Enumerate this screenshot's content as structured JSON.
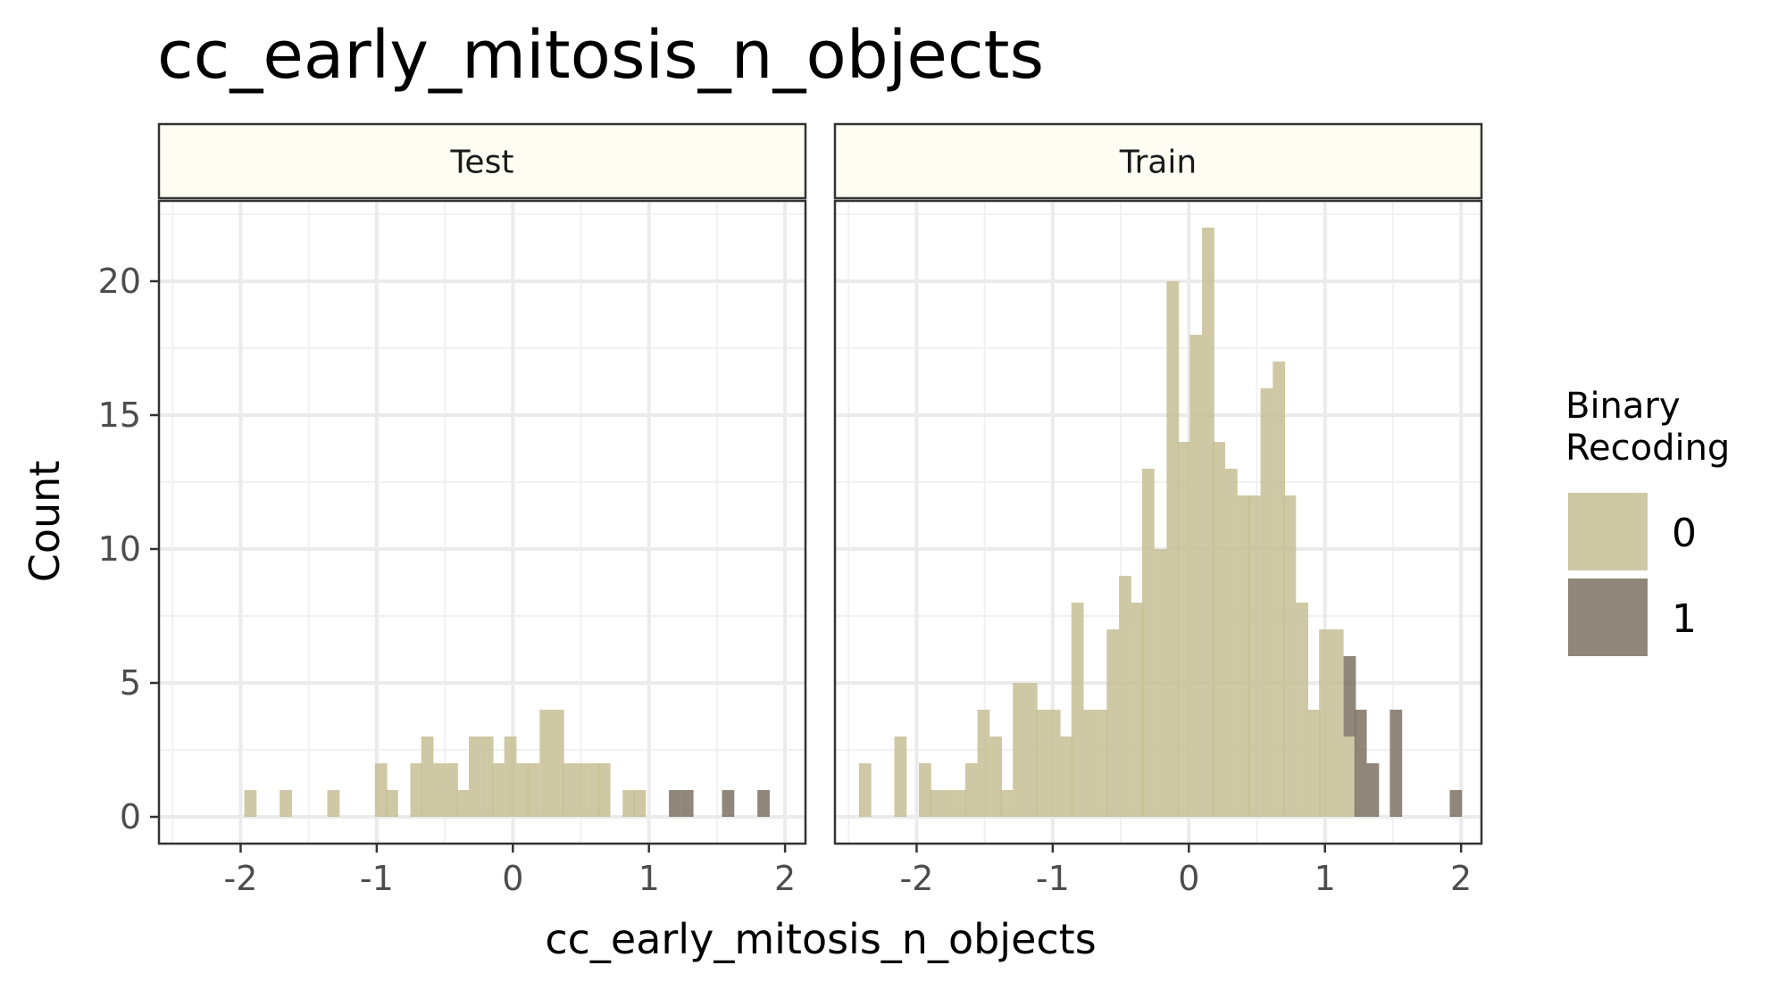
{
  "chart_data": {
    "type": "bar",
    "title": "cc_early_mitosis_n_objects",
    "xlabel": "cc_early_mitosis_n_objects",
    "ylabel": "Count",
    "xlim": [
      -2.6,
      2.15
    ],
    "ylim": [
      -1,
      23
    ],
    "x_ticks": [
      -2,
      -1,
      0,
      1,
      2
    ],
    "x_tick_labels": [
      "-2",
      "-1",
      "0",
      "1",
      "2"
    ],
    "y_ticks": [
      0,
      5,
      10,
      15,
      20
    ],
    "y_tick_labels": [
      "0",
      "5",
      "10",
      "15",
      "20"
    ],
    "grid": true,
    "bin_width": 0.0865,
    "legend": {
      "title_lines": [
        "Binary",
        "Recoding"
      ],
      "placement": "right",
      "items": [
        {
          "label": "0",
          "color": "#c5bf94"
        },
        {
          "label": "1",
          "color": "#7d7263"
        }
      ]
    },
    "facets": [
      {
        "label": "Test",
        "bins": [
          {
            "x": -1.93,
            "count": 1,
            "group": "0"
          },
          {
            "x": -1.67,
            "count": 1,
            "group": "0"
          },
          {
            "x": -1.32,
            "count": 1,
            "group": "0"
          },
          {
            "x": -0.97,
            "count": 2,
            "group": "0"
          },
          {
            "x": -0.89,
            "count": 1,
            "group": "0"
          },
          {
            "x": -0.71,
            "count": 2,
            "group": "0"
          },
          {
            "x": -0.63,
            "count": 3,
            "group": "0"
          },
          {
            "x": -0.54,
            "count": 2,
            "group": "0"
          },
          {
            "x": -0.45,
            "count": 2,
            "group": "0"
          },
          {
            "x": -0.37,
            "count": 1,
            "group": "0"
          },
          {
            "x": -0.28,
            "count": 3,
            "group": "0"
          },
          {
            "x": -0.19,
            "count": 3,
            "group": "0"
          },
          {
            "x": -0.11,
            "count": 2,
            "group": "0"
          },
          {
            "x": -0.02,
            "count": 3,
            "group": "0"
          },
          {
            "x": 0.07,
            "count": 2,
            "group": "0"
          },
          {
            "x": 0.15,
            "count": 2,
            "group": "0"
          },
          {
            "x": 0.24,
            "count": 4,
            "group": "0"
          },
          {
            "x": 0.33,
            "count": 4,
            "group": "0"
          },
          {
            "x": 0.41,
            "count": 2,
            "group": "0"
          },
          {
            "x": 0.5,
            "count": 2,
            "group": "0"
          },
          {
            "x": 0.59,
            "count": 2,
            "group": "0"
          },
          {
            "x": 0.67,
            "count": 2,
            "group": "0"
          },
          {
            "x": 0.85,
            "count": 1,
            "group": "0"
          },
          {
            "x": 0.93,
            "count": 1,
            "group": "0"
          },
          {
            "x": 1.19,
            "count": 1,
            "group": "1"
          },
          {
            "x": 1.28,
            "count": 1,
            "group": "1"
          },
          {
            "x": 1.58,
            "count": 1,
            "group": "1"
          },
          {
            "x": 1.84,
            "count": 1,
            "group": "1"
          }
        ]
      },
      {
        "label": "Train",
        "bins": [
          {
            "x": -2.38,
            "count": 2,
            "group": "0"
          },
          {
            "x": -2.12,
            "count": 3,
            "group": "0"
          },
          {
            "x": -1.94,
            "count": 2,
            "group": "0"
          },
          {
            "x": -1.86,
            "count": 1,
            "group": "0"
          },
          {
            "x": -1.77,
            "count": 1,
            "group": "0"
          },
          {
            "x": -1.68,
            "count": 1,
            "group": "0"
          },
          {
            "x": -1.6,
            "count": 2,
            "group": "0"
          },
          {
            "x": -1.51,
            "count": 4,
            "group": "0"
          },
          {
            "x": -1.42,
            "count": 3,
            "group": "0"
          },
          {
            "x": -1.34,
            "count": 1,
            "group": "0"
          },
          {
            "x": -1.25,
            "count": 5,
            "group": "0"
          },
          {
            "x": -1.16,
            "count": 5,
            "group": "0"
          },
          {
            "x": -1.08,
            "count": 4,
            "group": "0"
          },
          {
            "x": -0.99,
            "count": 4,
            "group": "0"
          },
          {
            "x": -0.9,
            "count": 3,
            "group": "0"
          },
          {
            "x": -0.82,
            "count": 8,
            "group": "0"
          },
          {
            "x": -0.73,
            "count": 4,
            "group": "0"
          },
          {
            "x": -0.64,
            "count": 4,
            "group": "0"
          },
          {
            "x": -0.56,
            "count": 7,
            "group": "0"
          },
          {
            "x": -0.47,
            "count": 9,
            "group": "0"
          },
          {
            "x": -0.38,
            "count": 8,
            "group": "0"
          },
          {
            "x": -0.3,
            "count": 13,
            "group": "0"
          },
          {
            "x": -0.21,
            "count": 10,
            "group": "0"
          },
          {
            "x": -0.12,
            "count": 20,
            "group": "0"
          },
          {
            "x": -0.04,
            "count": 14,
            "group": "0"
          },
          {
            "x": 0.05,
            "count": 18,
            "group": "0"
          },
          {
            "x": 0.14,
            "count": 22,
            "group": "0"
          },
          {
            "x": 0.22,
            "count": 14,
            "group": "0"
          },
          {
            "x": 0.31,
            "count": 13,
            "group": "0"
          },
          {
            "x": 0.4,
            "count": 12,
            "group": "0"
          },
          {
            "x": 0.48,
            "count": 12,
            "group": "0"
          },
          {
            "x": 0.57,
            "count": 16,
            "group": "0"
          },
          {
            "x": 0.66,
            "count": 17,
            "group": "0"
          },
          {
            "x": 0.74,
            "count": 12,
            "group": "0"
          },
          {
            "x": 0.83,
            "count": 8,
            "group": "0"
          },
          {
            "x": 0.92,
            "count": 4,
            "group": "0"
          },
          {
            "x": 1.0,
            "count": 7,
            "group": "0"
          },
          {
            "x": 1.09,
            "count": 7,
            "group": "0"
          },
          {
            "x": 1.18,
            "count": 3,
            "group": "0"
          },
          {
            "x": 1.18,
            "count": 3,
            "group": "1"
          },
          {
            "x": 1.26,
            "count": 4,
            "group": "1"
          },
          {
            "x": 1.35,
            "count": 2,
            "group": "1"
          },
          {
            "x": 1.52,
            "count": 4,
            "group": "1"
          },
          {
            "x": 1.96,
            "count": 1,
            "group": "1"
          }
        ]
      }
    ]
  }
}
